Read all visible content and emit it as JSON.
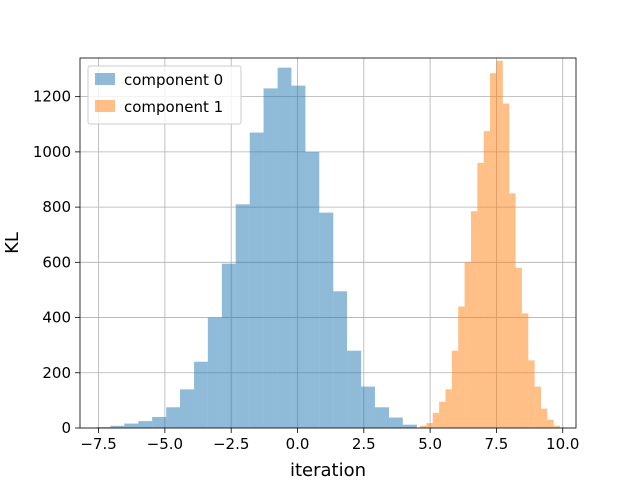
{
  "chart_data": {
    "type": "bar",
    "title": "",
    "xlabel": "iteration",
    "ylabel": "KL",
    "xlim": [
      -8.2,
      10.5
    ],
    "ylim": [
      0,
      1340
    ],
    "grid": true,
    "legend_position": "top-left",
    "x_ticks": [
      {
        "value": -7.5,
        "label": "−7.5"
      },
      {
        "value": -5.0,
        "label": "−5.0"
      },
      {
        "value": -2.5,
        "label": "−2.5"
      },
      {
        "value": 0.0,
        "label": "0.0"
      },
      {
        "value": 2.5,
        "label": "2.5"
      },
      {
        "value": 5.0,
        "label": "5.0"
      },
      {
        "value": 7.5,
        "label": "7.5"
      },
      {
        "value": 10.0,
        "label": "10.0"
      }
    ],
    "y_ticks": [
      {
        "value": 0,
        "label": "0"
      },
      {
        "value": 200,
        "label": "200"
      },
      {
        "value": 400,
        "label": "400"
      },
      {
        "value": 600,
        "label": "600"
      },
      {
        "value": 800,
        "label": "800"
      },
      {
        "value": 1000,
        "label": "1000"
      },
      {
        "value": 1200,
        "label": "1200"
      }
    ],
    "series": [
      {
        "name": "component 0",
        "color": "#1f77b4",
        "opacity": 0.5,
        "bin_edges": [
          -7.58,
          -7.05,
          -6.53,
          -6.0,
          -5.48,
          -4.95,
          -4.43,
          -3.9,
          -3.38,
          -2.85,
          -2.33,
          -1.8,
          -1.28,
          -0.75,
          -0.23,
          0.3,
          0.82,
          1.35,
          1.87,
          2.4,
          2.92,
          3.45,
          3.97,
          4.5
        ],
        "counts": [
          3,
          8,
          16,
          25,
          40,
          75,
          140,
          240,
          400,
          595,
          810,
          1070,
          1230,
          1305,
          1240,
          1000,
          780,
          495,
          280,
          150,
          75,
          38,
          12
        ]
      },
      {
        "name": "component 1",
        "color": "#ff7f0e",
        "opacity": 0.5,
        "bin_edges": [
          4.38,
          4.62,
          4.86,
          5.1,
          5.34,
          5.58,
          5.82,
          6.06,
          6.3,
          6.54,
          6.78,
          7.02,
          7.26,
          7.5,
          7.74,
          7.98,
          8.22,
          8.46,
          8.7,
          8.94,
          9.18,
          9.42,
          9.66,
          9.9
        ],
        "counts": [
          2,
          8,
          18,
          55,
          95,
          140,
          280,
          440,
          600,
          785,
          960,
          1075,
          1285,
          1330,
          1175,
          850,
          580,
          415,
          245,
          150,
          70,
          30,
          8
        ]
      }
    ]
  }
}
